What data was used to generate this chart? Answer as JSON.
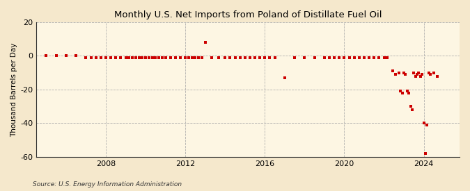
{
  "title": "Monthly U.S. Net Imports from Poland of Distillate Fuel Oil",
  "ylabel": "Thousand Barrels per Day",
  "source": "Source: U.S. Energy Information Administration",
  "background_color": "#f5e8cc",
  "plot_bg_color": "#fdf6e3",
  "ylim": [
    -60,
    20
  ],
  "yticks": [
    -60,
    -40,
    -20,
    0,
    20
  ],
  "xlim": [
    2004.5,
    2025.8
  ],
  "xticks": [
    2008,
    2012,
    2016,
    2020,
    2024
  ],
  "marker_color": "#cc0000",
  "marker_size": 3.5,
  "data": [
    [
      2005.0,
      0
    ],
    [
      2005.5,
      0
    ],
    [
      2006.0,
      0
    ],
    [
      2006.5,
      0
    ],
    [
      2007.0,
      -1
    ],
    [
      2007.25,
      -1
    ],
    [
      2007.5,
      -1
    ],
    [
      2007.75,
      -1
    ],
    [
      2008.0,
      -1
    ],
    [
      2008.25,
      -1
    ],
    [
      2008.5,
      -1
    ],
    [
      2008.75,
      -1
    ],
    [
      2009.0,
      -1
    ],
    [
      2009.17,
      -1
    ],
    [
      2009.33,
      -1
    ],
    [
      2009.5,
      -1
    ],
    [
      2009.67,
      -1
    ],
    [
      2009.83,
      -1
    ],
    [
      2010.0,
      -1
    ],
    [
      2010.17,
      -1
    ],
    [
      2010.33,
      -1
    ],
    [
      2010.5,
      -1
    ],
    [
      2010.67,
      -1
    ],
    [
      2010.83,
      -1
    ],
    [
      2011.0,
      -1
    ],
    [
      2011.25,
      -1
    ],
    [
      2011.5,
      -1
    ],
    [
      2011.75,
      -1
    ],
    [
      2012.0,
      -1
    ],
    [
      2012.17,
      -1
    ],
    [
      2012.33,
      -1
    ],
    [
      2012.5,
      -1
    ],
    [
      2012.67,
      -1
    ],
    [
      2012.83,
      -1
    ],
    [
      2013.0,
      8
    ],
    [
      2013.33,
      -1
    ],
    [
      2013.67,
      -1
    ],
    [
      2014.0,
      -1
    ],
    [
      2014.25,
      -1
    ],
    [
      2014.5,
      -1
    ],
    [
      2014.75,
      -1
    ],
    [
      2015.0,
      -1
    ],
    [
      2015.25,
      -1
    ],
    [
      2015.5,
      -1
    ],
    [
      2015.75,
      -1
    ],
    [
      2016.0,
      -1
    ],
    [
      2016.25,
      -1
    ],
    [
      2016.5,
      -1
    ],
    [
      2017.0,
      -13
    ],
    [
      2017.5,
      -1
    ],
    [
      2018.0,
      -1
    ],
    [
      2018.5,
      -1
    ],
    [
      2019.0,
      -1
    ],
    [
      2019.25,
      -1
    ],
    [
      2019.5,
      -1
    ],
    [
      2019.75,
      -1
    ],
    [
      2020.0,
      -1
    ],
    [
      2020.25,
      -1
    ],
    [
      2020.5,
      -1
    ],
    [
      2020.75,
      -1
    ],
    [
      2021.0,
      -1
    ],
    [
      2021.25,
      -1
    ],
    [
      2021.5,
      -1
    ],
    [
      2021.75,
      -1
    ],
    [
      2022.0,
      -1
    ],
    [
      2022.17,
      -1
    ],
    [
      2022.42,
      -9
    ],
    [
      2022.58,
      -11
    ],
    [
      2022.75,
      -10
    ],
    [
      2022.83,
      -21
    ],
    [
      2022.92,
      -22
    ],
    [
      2023.0,
      -10
    ],
    [
      2023.08,
      -11
    ],
    [
      2023.17,
      -21
    ],
    [
      2023.25,
      -22
    ],
    [
      2023.33,
      -30
    ],
    [
      2023.42,
      -32
    ],
    [
      2023.5,
      -10
    ],
    [
      2023.58,
      -12
    ],
    [
      2023.67,
      -11
    ],
    [
      2023.75,
      -10
    ],
    [
      2023.83,
      -12
    ],
    [
      2023.92,
      -11
    ],
    [
      2024.0,
      -40
    ],
    [
      2024.08,
      -58
    ],
    [
      2024.17,
      -41
    ],
    [
      2024.25,
      -10
    ],
    [
      2024.33,
      -11
    ],
    [
      2024.5,
      -10
    ],
    [
      2024.67,
      -12
    ]
  ]
}
